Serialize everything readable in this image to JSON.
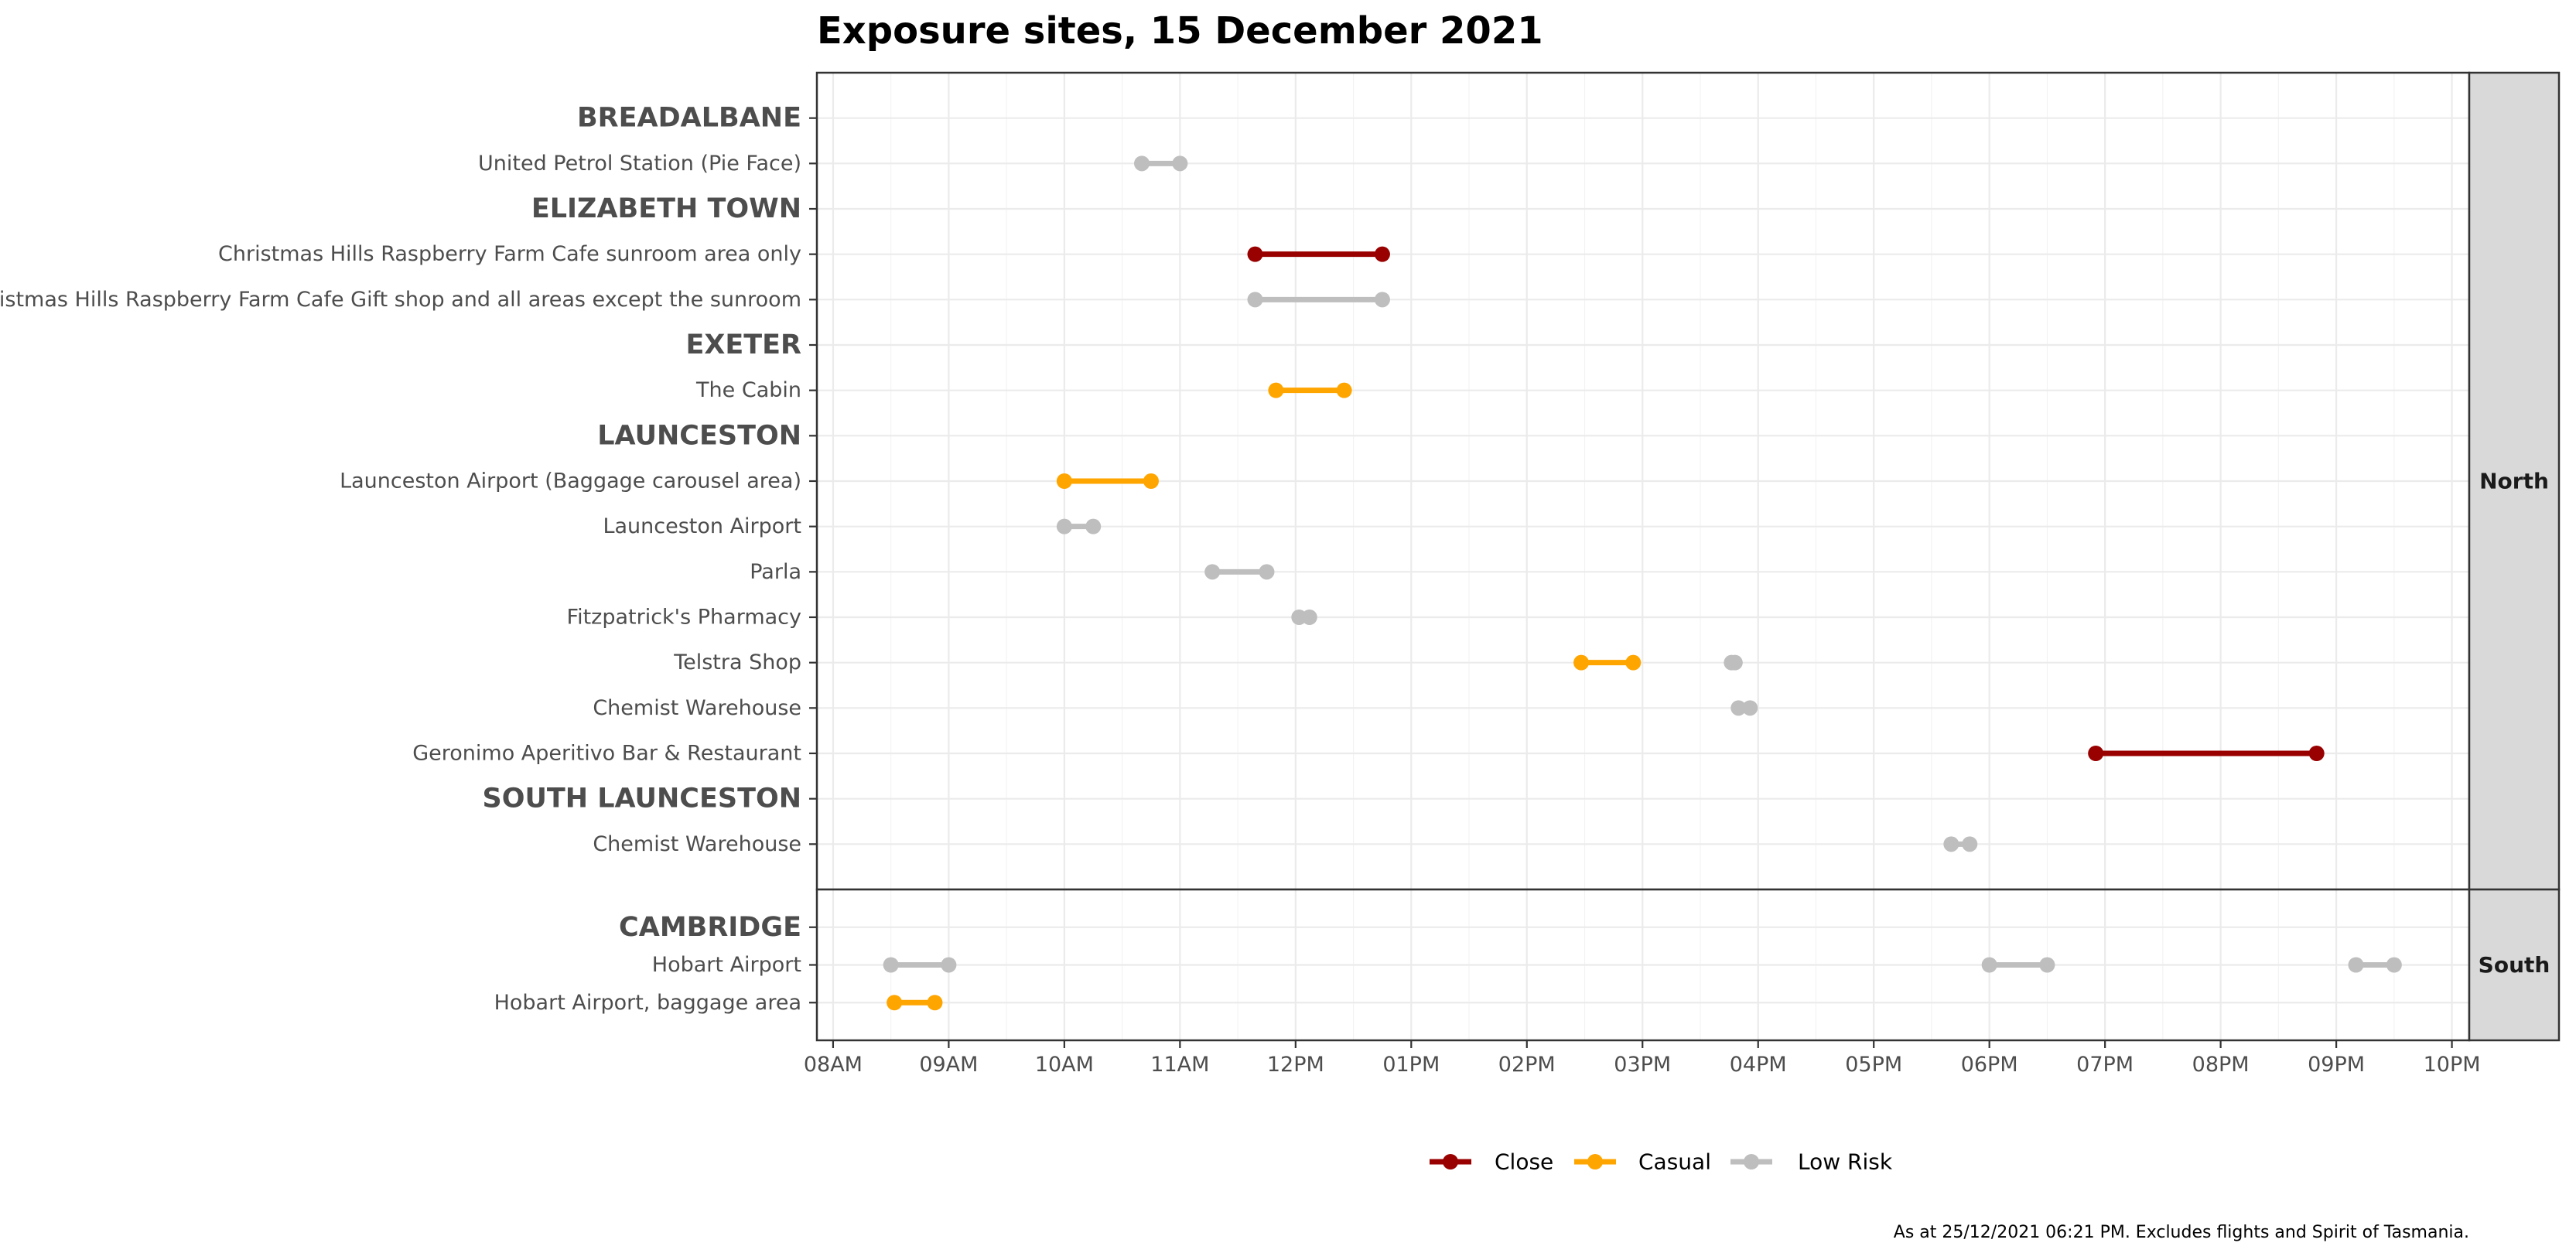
{
  "chart_data": {
    "type": "dumbbell",
    "title": "Exposure sites, 15 December 2021",
    "caption": "As at 25/12/2021 06:21 PM. Excludes flights and Spirit of Tasmania.",
    "x_ticks": [
      "08AM",
      "09AM",
      "10AM",
      "11AM",
      "12PM",
      "01PM",
      "02PM",
      "03PM",
      "04PM",
      "05PM",
      "06PM",
      "07PM",
      "08PM",
      "09PM",
      "10PM"
    ],
    "xlim": [
      7.86,
      22.15
    ],
    "grid": true,
    "legend_position": "bottom",
    "legend": [
      {
        "name": "Close",
        "color": "#990000"
      },
      {
        "name": "Casual",
        "color": "#ffa500"
      },
      {
        "name": "Low Risk",
        "color": "#bebebe"
      }
    ],
    "panels": [
      {
        "region": "North",
        "rows": [
          {
            "label": "BREADALBANE",
            "header": true,
            "segments": []
          },
          {
            "label": "United Petrol Station (Pie Face)",
            "segments": [
              {
                "start": 10.67,
                "end": 11.0,
                "risk": "Low Risk"
              }
            ]
          },
          {
            "label": "ELIZABETH TOWN",
            "header": true,
            "segments": []
          },
          {
            "label": "Christmas Hills Raspberry Farm Cafe sunroom area only",
            "segments": [
              {
                "start": 11.65,
                "end": 12.75,
                "risk": "Close"
              }
            ]
          },
          {
            "label": "Christmas Hills Raspberry Farm Cafe Gift shop and all areas except the sunroom",
            "segments": [
              {
                "start": 11.65,
                "end": 12.75,
                "risk": "Low Risk"
              }
            ]
          },
          {
            "label": "EXETER",
            "header": true,
            "segments": []
          },
          {
            "label": "The Cabin",
            "segments": [
              {
                "start": 11.83,
                "end": 12.42,
                "risk": "Casual"
              }
            ]
          },
          {
            "label": "LAUNCESTON",
            "header": true,
            "segments": []
          },
          {
            "label": "Launceston Airport (Baggage carousel area)",
            "segments": [
              {
                "start": 10.0,
                "end": 10.75,
                "risk": "Casual"
              }
            ]
          },
          {
            "label": "Launceston Airport",
            "segments": [
              {
                "start": 10.0,
                "end": 10.25,
                "risk": "Low Risk"
              }
            ]
          },
          {
            "label": "Parla",
            "segments": [
              {
                "start": 11.28,
                "end": 11.75,
                "risk": "Low Risk"
              }
            ]
          },
          {
            "label": "Fitzpatrick's Pharmacy",
            "segments": [
              {
                "start": 12.03,
                "end": 12.12,
                "risk": "Low Risk"
              }
            ]
          },
          {
            "label": "Telstra Shop",
            "segments": [
              {
                "start": 14.47,
                "end": 14.92,
                "risk": "Casual"
              },
              {
                "start": 15.77,
                "end": 15.8,
                "risk": "Low Risk"
              }
            ]
          },
          {
            "label": "Chemist Warehouse",
            "segments": [
              {
                "start": 15.83,
                "end": 15.93,
                "risk": "Low Risk"
              }
            ]
          },
          {
            "label": "Geronimo Aperitivo Bar & Restaurant",
            "segments": [
              {
                "start": 18.92,
                "end": 20.83,
                "risk": "Close"
              }
            ]
          },
          {
            "label": "SOUTH LAUNCESTON",
            "header": true,
            "segments": []
          },
          {
            "label": "Chemist Warehouse",
            "segments": [
              {
                "start": 17.67,
                "end": 17.83,
                "risk": "Low Risk"
              }
            ]
          }
        ]
      },
      {
        "region": "South",
        "rows": [
          {
            "label": "CAMBRIDGE",
            "header": true,
            "segments": []
          },
          {
            "label": "Hobart Airport",
            "segments": [
              {
                "start": 8.5,
                "end": 9.0,
                "risk": "Low Risk"
              },
              {
                "start": 18.0,
                "end": 18.5,
                "risk": "Low Risk"
              },
              {
                "start": 21.17,
                "end": 21.5,
                "risk": "Low Risk"
              }
            ]
          },
          {
            "label": "Hobart Airport, baggage area",
            "segments": [
              {
                "start": 8.53,
                "end": 8.88,
                "risk": "Casual"
              }
            ]
          }
        ]
      }
    ]
  }
}
